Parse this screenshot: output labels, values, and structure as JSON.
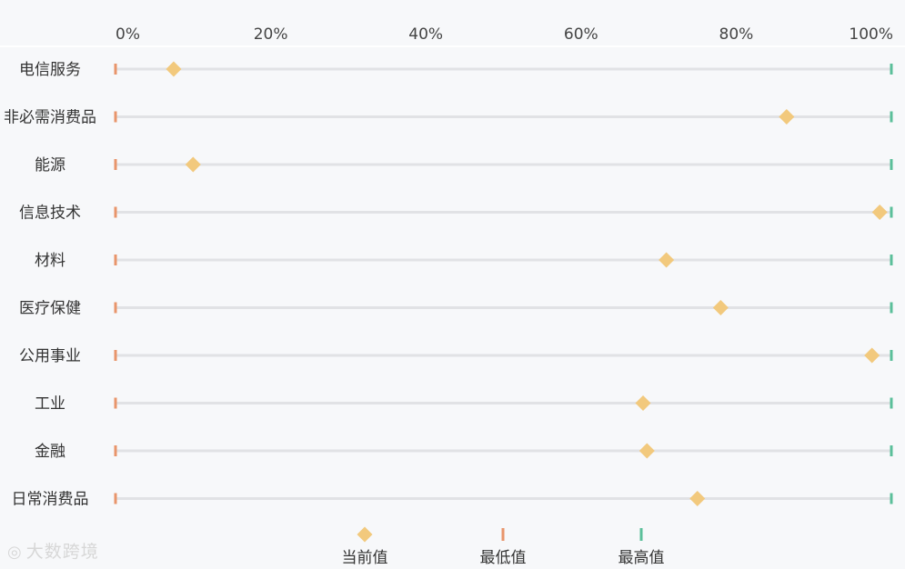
{
  "chart_data": {
    "type": "scatter",
    "x_ticks": [
      "0%",
      "20%",
      "40%",
      "60%",
      "80%",
      "100%"
    ],
    "xlim": [
      0,
      100
    ],
    "categories": [
      "电信服务",
      "非必需消费品",
      "能源",
      "信息技术",
      "材料",
      "医疗保健",
      "公用事业",
      "工业",
      "金融",
      "日常消费品"
    ],
    "series": [
      {
        "name": "当前值",
        "values": [
          7.5,
          86.5,
          10,
          98.5,
          71,
          78,
          97.5,
          68,
          68.5,
          75
        ],
        "color": "#f2c97d",
        "marker": "diamond"
      },
      {
        "name": "最低值",
        "values": [
          0,
          0,
          0,
          0,
          0,
          0,
          0,
          0,
          0,
          0
        ],
        "color": "#e8956b",
        "marker": "tick"
      },
      {
        "name": "最高值",
        "values": [
          100,
          100,
          100,
          100,
          100,
          100,
          100,
          100,
          100,
          100
        ],
        "color": "#5bbf9a",
        "marker": "tick"
      }
    ],
    "grid": false,
    "legend_position": "bottom"
  },
  "watermark": {
    "icon": "weibo-icon",
    "text": "大数跨境"
  }
}
